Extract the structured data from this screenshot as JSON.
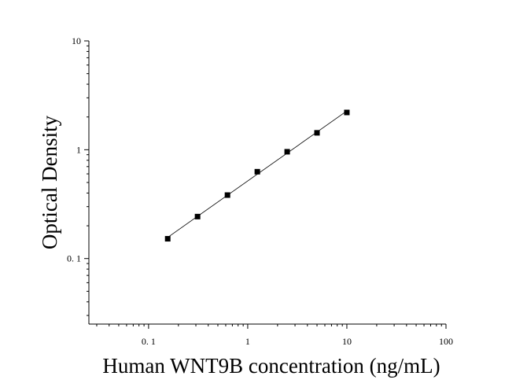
{
  "chart_data": {
    "type": "scatter",
    "xlabel": "Human WNT9B concentration (ng/mL)",
    "ylabel": "Optical Density",
    "x_scale": "log",
    "y_scale": "log",
    "xlim": [
      0.025,
      100
    ],
    "ylim": [
      0.025,
      10
    ],
    "x_ticks": [
      {
        "value": 0.1,
        "label": "0. 1"
      },
      {
        "value": 1,
        "label": "1"
      },
      {
        "value": 10,
        "label": "10"
      },
      {
        "value": 100,
        "label": "100"
      }
    ],
    "y_ticks": [
      {
        "value": 0.1,
        "label": "0. 1"
      },
      {
        "value": 1,
        "label": "1"
      },
      {
        "value": 10,
        "label": "10"
      }
    ],
    "series": [
      {
        "marker": "square",
        "color": "#000000",
        "x": [
          0.156,
          0.312,
          0.625,
          1.25,
          2.5,
          5,
          10
        ],
        "y": [
          0.152,
          0.243,
          0.383,
          0.628,
          0.958,
          1.43,
          2.2
        ]
      }
    ],
    "fit_line": true,
    "grid": false,
    "legend": "none"
  }
}
